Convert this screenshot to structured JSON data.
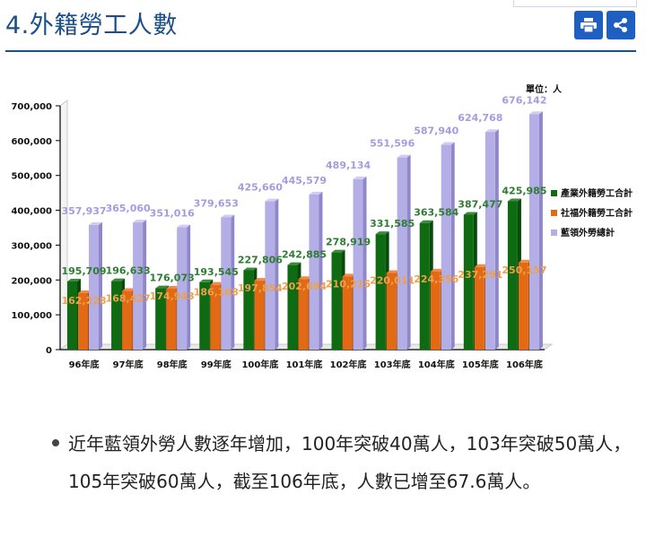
{
  "page_title": "4.外籍勞工人數",
  "toolbar": {
    "print_icon": "print-icon",
    "share_icon": "share-icon"
  },
  "colors": {
    "green": "#0e6b12",
    "orange": "#e26a14",
    "lavender": "#b4aee6",
    "green_label": "#2e7d32",
    "orange_label": "#f0a04a",
    "lavender_label": "#a59ce0"
  },
  "chart_data": {
    "type": "bar",
    "unit_label": "單位：人",
    "categories": [
      "96年底",
      "97年底",
      "98年底",
      "99年底",
      "100年底",
      "101年底",
      "102年底",
      "103年底",
      "104年底",
      "105年底",
      "106年底"
    ],
    "ylim": [
      0,
      700000
    ],
    "yticks": [
      "0",
      "100,000",
      "200,000",
      "300,000",
      "400,000",
      "500,000",
      "600,000",
      "700,000"
    ],
    "legend_position": "right",
    "series": [
      {
        "name": "產業外籍勞工合計",
        "values": [
          195709,
          196633,
          176073,
          193545,
          227806,
          242885,
          278919,
          331585,
          363584,
          387477,
          425985
        ],
        "labels": [
          "195,709",
          "196,633",
          "176,073",
          "193,545",
          "227,806",
          "242,885",
          "278,919",
          "331,585",
          "363,584",
          "387,477",
          "425,985"
        ]
      },
      {
        "name": "社福外籍勞工合計",
        "values": [
          162228,
          168427,
          174943,
          186108,
          197854,
          202694,
          210215,
          220011,
          224356,
          237291,
          250157
        ],
        "labels": [
          "162,228",
          "168,427",
          "174,943",
          "186,108",
          "197,854",
          "202,694",
          "210,215",
          "220,011",
          "224,356",
          "237,291",
          "250,157"
        ]
      },
      {
        "name": "藍領外勞總計",
        "values": [
          357937,
          365060,
          351016,
          379653,
          425660,
          445579,
          489134,
          551596,
          587940,
          624768,
          676142
        ],
        "labels": [
          "357,937",
          "365,060",
          "351,016",
          "379,653",
          "425,660",
          "445,579",
          "489,134",
          "551,596",
          "587,940",
          "624,768",
          "676,142"
        ]
      }
    ]
  },
  "summary": {
    "text": "近年藍領外勞人數逐年增加，100年突破40萬人，103年突破50萬人，105年突破60萬人，截至106年底，人數已增至67.6萬人。"
  }
}
